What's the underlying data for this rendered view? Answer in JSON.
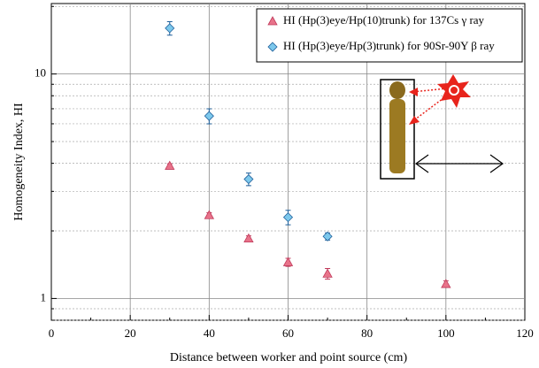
{
  "chart_data": {
    "type": "scatter",
    "log_y": true,
    "grid": true,
    "xlabel": "Distance between worker and point source (cm)",
    "ylabel": "Homogeneity Index, HI",
    "xlim": [
      0,
      120
    ],
    "xticks": [
      0,
      20,
      40,
      60,
      80,
      100,
      120
    ],
    "ylim": [
      0.8,
      20.6
    ],
    "yticks": [
      1,
      10
    ],
    "series": [
      {
        "name": "HI (Hp(3)eye/Hp(10)trunk) for 137Cs γ ray",
        "marker": "triangle",
        "color": "#e8738a",
        "edge": "#c0395a",
        "x": [
          30,
          40,
          50,
          60,
          70,
          100
        ],
        "values": [
          3.9,
          2.35,
          1.85,
          1.45,
          1.29,
          1.16
        ],
        "errors": [
          0.08,
          0.06,
          0.05,
          0.06,
          0.07,
          0.04
        ]
      },
      {
        "name": "HI (Hp(3)eye/Hp(3)trunk) for 90Sr-90Y β ray",
        "marker": "diamond",
        "color": "#7cc8ec",
        "edge": "#1f5f9a",
        "x": [
          30,
          40,
          50,
          60,
          70
        ],
        "values": [
          16.0,
          6.5,
          3.4,
          2.3,
          1.89
        ],
        "errors": [
          1.1,
          0.5,
          0.22,
          0.17,
          0.07
        ]
      }
    ]
  }
}
